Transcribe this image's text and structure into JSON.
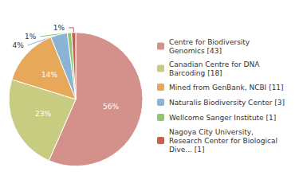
{
  "chart_data": {
    "type": "pie",
    "categories": [
      "Centre for Biodiversity\nGenomics [43]",
      "Canadian Centre for DNA\nBarcoding [18]",
      "Mined from GenBank, NCBI [11]",
      "Naturalis Biodiversity Center [3]",
      "Wellcome Sanger Institute [1]",
      "Nagoya City University,\nResearch Center for Biological\nDive... [1]"
    ],
    "values": [
      56,
      23,
      14,
      4,
      1,
      1
    ],
    "value_labels": [
      "56%",
      "23%",
      "14%",
      "4%",
      "1%",
      "1%"
    ],
    "colors": [
      "#d4908a",
      "#c8cc80",
      "#e8a85a",
      "#8ab4d4",
      "#8dc870",
      "#c86050"
    ],
    "data_labels": true,
    "legend": "right"
  }
}
